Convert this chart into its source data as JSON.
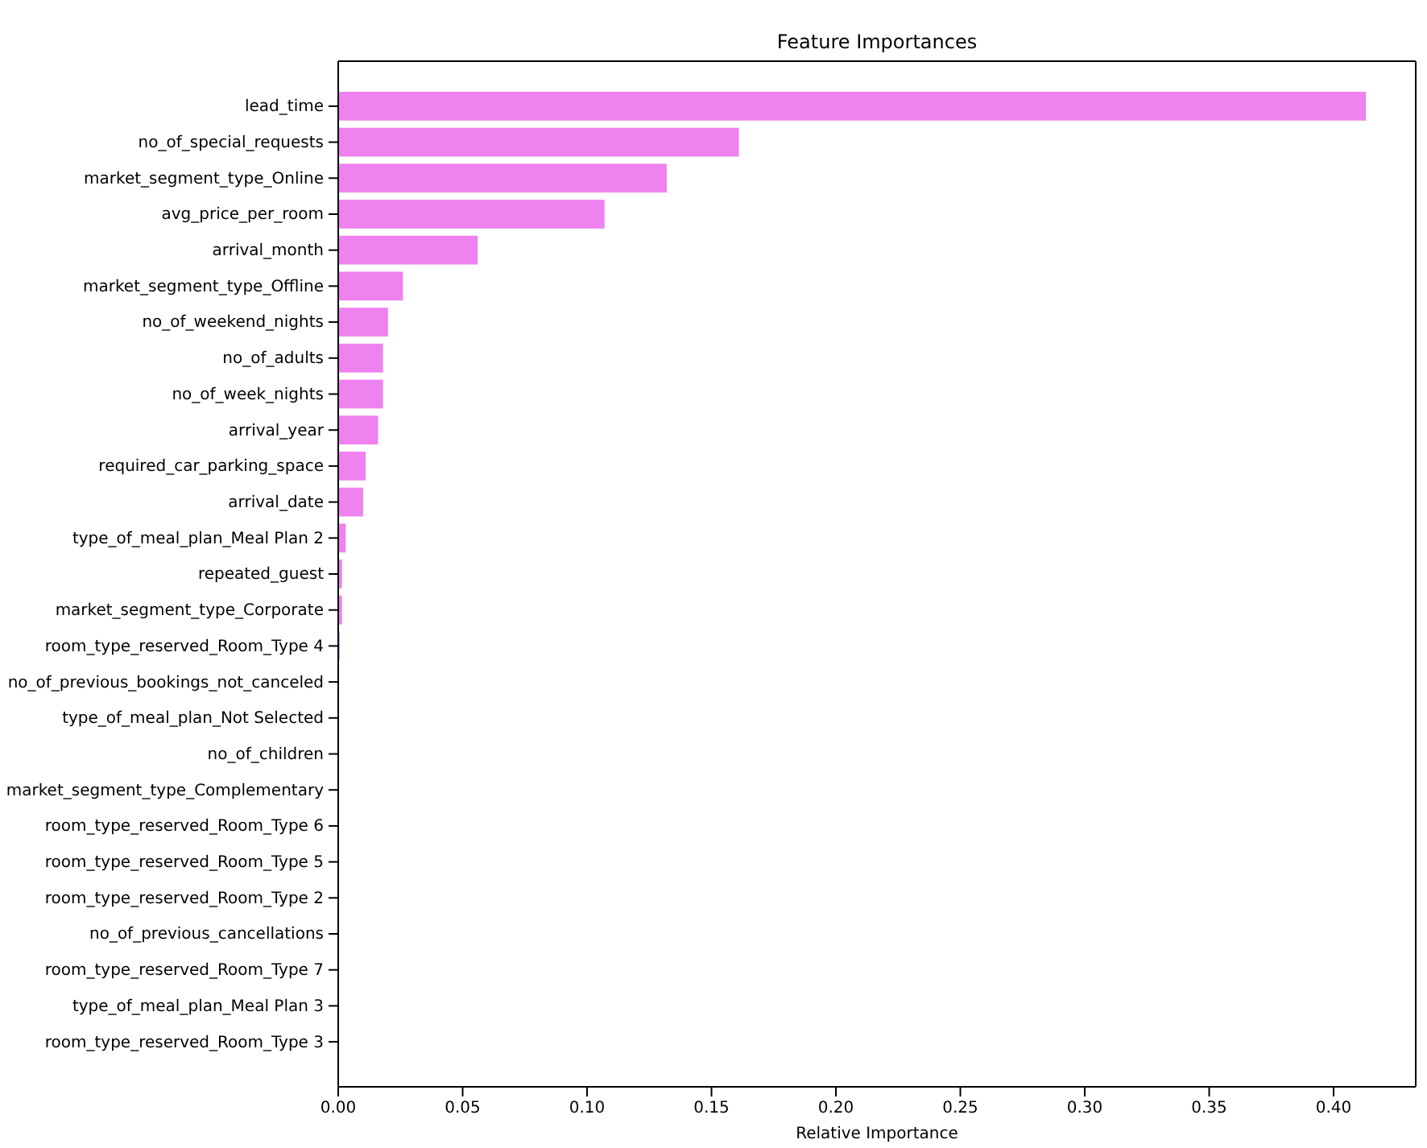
{
  "chart_data": {
    "type": "bar",
    "orientation": "horizontal",
    "title": "Feature Importances",
    "xlabel": "Relative Importance",
    "categories": [
      "lead_time",
      "no_of_special_requests",
      "market_segment_type_Online",
      "avg_price_per_room",
      "arrival_month",
      "market_segment_type_Offline",
      "no_of_weekend_nights",
      "no_of_adults",
      "no_of_week_nights",
      "arrival_year",
      "required_car_parking_space",
      "arrival_date",
      "type_of_meal_plan_Meal Plan 2",
      "repeated_guest",
      "market_segment_type_Corporate",
      "room_type_reserved_Room_Type 4",
      "no_of_previous_bookings_not_canceled",
      "type_of_meal_plan_Not Selected",
      "no_of_children",
      "market_segment_type_Complementary",
      "room_type_reserved_Room_Type 6",
      "room_type_reserved_Room_Type 5",
      "room_type_reserved_Room_Type 2",
      "no_of_previous_cancellations",
      "room_type_reserved_Room_Type 7",
      "type_of_meal_plan_Meal Plan 3",
      "room_type_reserved_Room_Type 3"
    ],
    "values": [
      0.413,
      0.161,
      0.132,
      0.107,
      0.056,
      0.026,
      0.02,
      0.018,
      0.018,
      0.016,
      0.011,
      0.01,
      0.003,
      0.0015,
      0.0015,
      0.0006,
      0,
      0,
      0,
      0,
      0,
      0,
      0,
      0,
      0,
      0,
      0
    ],
    "color": "#ee82ee",
    "xlim": [
      0,
      0.433
    ],
    "xticks": [
      {
        "value": 0,
        "label": "0.00"
      },
      {
        "value": 0.05,
        "label": "0.05"
      },
      {
        "value": 0.1,
        "label": "0.10"
      },
      {
        "value": 0.15,
        "label": "0.15"
      },
      {
        "value": 0.2,
        "label": "0.20"
      },
      {
        "value": 0.25,
        "label": "0.25"
      },
      {
        "value": 0.3,
        "label": "0.30"
      },
      {
        "value": 0.35,
        "label": "0.35"
      },
      {
        "value": 0.4,
        "label": "0.40"
      }
    ],
    "grid": false
  }
}
